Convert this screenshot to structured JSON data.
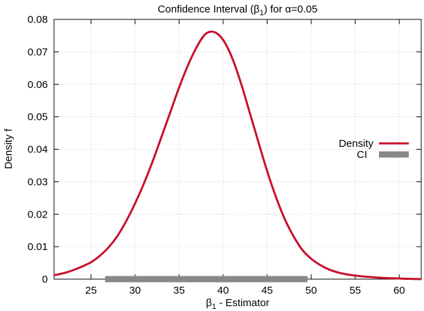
{
  "chart_data": {
    "type": "line",
    "title_prefix": "Confidence Interval (β",
    "title_subscript": "1",
    "title_suffix": ") for α=0.05",
    "xlabel_prefix": "β",
    "xlabel_subscript": "1",
    "xlabel_suffix": " - Estimator",
    "ylabel": "Density f",
    "xlim": [
      20.8,
      62.5
    ],
    "ylim": [
      0,
      0.08
    ],
    "x_ticks": [
      25,
      30,
      35,
      40,
      45,
      50,
      55,
      60
    ],
    "x_tick_labels": [
      "25",
      "30",
      "35",
      "40",
      "45",
      "50",
      "55",
      "60"
    ],
    "y_ticks": [
      0,
      0.01,
      0.02,
      0.03,
      0.04,
      0.05,
      0.06,
      0.07,
      0.08
    ],
    "y_tick_labels": [
      "0",
      "0.01",
      "0.02",
      "0.03",
      "0.04",
      "0.05",
      "0.06",
      "0.07",
      "0.08"
    ],
    "grid": true,
    "legend_position": "right",
    "series": [
      {
        "name": "Density",
        "color": "#c8102e",
        "x": [
          20.8,
          22,
          23,
          24,
          25,
          26,
          27,
          28,
          29,
          30,
          31,
          32,
          33,
          34,
          35,
          36,
          37,
          38,
          39,
          40,
          41,
          42,
          43,
          44,
          45,
          46,
          47,
          48,
          49,
          50,
          51,
          52,
          53,
          54,
          55,
          56,
          57,
          58,
          59,
          60,
          61,
          62.5
        ],
        "y": [
          0.0012,
          0.0019,
          0.0028,
          0.0039,
          0.0052,
          0.0072,
          0.0098,
          0.0133,
          0.0179,
          0.0233,
          0.0294,
          0.0363,
          0.0438,
          0.0514,
          0.059,
          0.0658,
          0.0715,
          0.0755,
          0.0761,
          0.0737,
          0.0683,
          0.0606,
          0.0515,
          0.0423,
          0.0333,
          0.0253,
          0.0185,
          0.0132,
          0.009,
          0.0063,
          0.0044,
          0.003,
          0.0021,
          0.0015,
          0.0011,
          0.0008,
          0.0006,
          0.0004,
          0.0003,
          0.0002,
          0.0001,
          0.0
        ]
      },
      {
        "name": "CI",
        "color": "#888888",
        "interval": [
          26.6,
          49.6
        ],
        "y": 0
      }
    ]
  }
}
